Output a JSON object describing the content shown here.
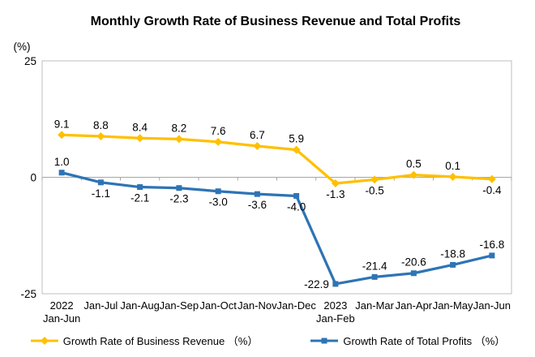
{
  "title": "Monthly Growth Rate of Business Revenue and Total Profits",
  "y_axis_unit": "(%)",
  "chart_data": {
    "type": "line",
    "categories": [
      "2022\nJan-Jun",
      "Jan-Jul",
      "Jan-Aug",
      "Jan-Sep",
      "Jan-Oct",
      "Jan-Nov",
      "Jan-Dec",
      "2023\nJan-Feb",
      "Jan-Mar",
      "Jan-Apr",
      "Jan-May",
      "Jan-Jun"
    ],
    "series": [
      {
        "name": "Growth Rate of Business Revenue （%）",
        "color": "#FFC000",
        "marker": "diamond",
        "values": [
          9.1,
          8.8,
          8.4,
          8.2,
          7.6,
          6.7,
          5.9,
          -1.3,
          -0.5,
          0.5,
          0.1,
          -0.4
        ],
        "label_positions": [
          "above",
          "above",
          "above",
          "above",
          "above",
          "above",
          "above",
          "below",
          "below",
          "above",
          "above",
          "below"
        ]
      },
      {
        "name": "Growth Rate of Total Profits （%）",
        "color": "#2E74B5",
        "marker": "square",
        "values": [
          1.0,
          -1.1,
          -2.1,
          -2.3,
          -3.0,
          -3.6,
          -4.0,
          -22.9,
          -21.4,
          -20.6,
          -18.8,
          -16.8
        ],
        "label_positions": [
          "above",
          "below",
          "below",
          "below",
          "below",
          "below",
          "below",
          "left",
          "above",
          "above",
          "above",
          "above"
        ]
      }
    ],
    "ylim": [
      -25,
      25
    ],
    "y_ticks": [
      25,
      0,
      -25
    ],
    "grid": "zero-line-only",
    "legend_position": "bottom",
    "colors": {
      "plot_frame": "#BFBFBF",
      "zero_axis": "#A6A6A6",
      "text": "#000000",
      "plot_background": "#FFFFFF"
    }
  }
}
